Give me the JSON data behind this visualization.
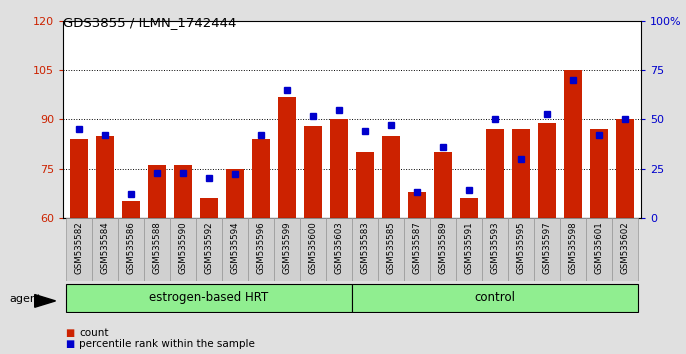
{
  "title": "GDS3855 / ILMN_1742444",
  "samples": [
    "GSM535582",
    "GSM535584",
    "GSM535586",
    "GSM535588",
    "GSM535590",
    "GSM535592",
    "GSM535594",
    "GSM535596",
    "GSM535599",
    "GSM535600",
    "GSM535603",
    "GSM535583",
    "GSM535585",
    "GSM535587",
    "GSM535589",
    "GSM535591",
    "GSM535593",
    "GSM535595",
    "GSM535597",
    "GSM535598",
    "GSM535601",
    "GSM535602"
  ],
  "counts": [
    84,
    85,
    65,
    76,
    76,
    66,
    75,
    84,
    97,
    88,
    90,
    80,
    85,
    68,
    80,
    66,
    87,
    87,
    89,
    105,
    87,
    90
  ],
  "percentiles": [
    45,
    42,
    12,
    23,
    23,
    20,
    22,
    42,
    65,
    52,
    55,
    44,
    47,
    13,
    36,
    14,
    50,
    30,
    53,
    70,
    42,
    50
  ],
  "bar_color": "#CC2200",
  "blue_color": "#0000CC",
  "left_ylim": [
    60,
    120
  ],
  "left_yticks": [
    60,
    75,
    90,
    105,
    120
  ],
  "right_ylim": [
    0,
    100
  ],
  "right_yticks": [
    0,
    25,
    50,
    75,
    100
  ],
  "right_yticklabels": [
    "0",
    "25",
    "50",
    "75",
    "100%"
  ],
  "dotted_vals": [
    75,
    90,
    105
  ],
  "bg_color": "#E0E0E0",
  "plot_bg": "#FFFFFF",
  "n_hrt": 11,
  "n_ctrl": 11
}
